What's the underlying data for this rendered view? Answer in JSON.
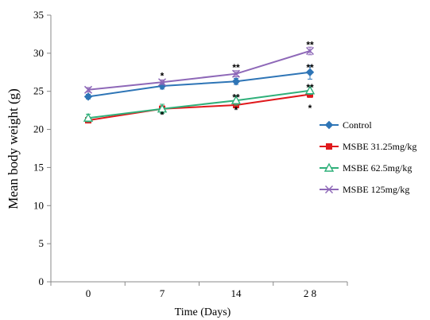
{
  "chart_data": {
    "type": "line",
    "xlabel": "Time (Days)",
    "ylabel": "Mean body weight (g)",
    "categories": [
      "0",
      "7",
      "14",
      "2 8"
    ],
    "ylim": [
      0,
      35
    ],
    "yticks": [
      0,
      5,
      10,
      15,
      20,
      25,
      30,
      35
    ],
    "grid": false,
    "legend_position": "right",
    "series": [
      {
        "name": "Control",
        "values": [
          24.3,
          25.7,
          26.3,
          27.5
        ],
        "color": "#2e75b6",
        "marker": "diamond",
        "errors": [
          0.3,
          0.4,
          0.4,
          0.9
        ]
      },
      {
        "name": "MSBE 31.25mg/kg",
        "values": [
          21.2,
          22.7,
          23.2,
          24.6
        ],
        "color": "#e0191c",
        "marker": "square",
        "errors": [
          0.3,
          0.4,
          0.3,
          0.4
        ]
      },
      {
        "name": "MSBE 62.5mg/kg",
        "values": [
          21.5,
          22.7,
          23.8,
          25.1
        ],
        "color": "#2fb07a",
        "marker": "triangle",
        "errors": [
          0.5,
          0.6,
          0.6,
          0.5
        ]
      },
      {
        "name": "MSBE 125mg/kg",
        "values": [
          25.2,
          26.2,
          27.3,
          30.3
        ],
        "color": "#8e68b8",
        "marker": "x",
        "errors": [
          0.3,
          0.3,
          0.4,
          0.5
        ]
      }
    ],
    "annotations": [
      {
        "text": "*",
        "category_index": 1,
        "y": 27.1
      },
      {
        "text": "*",
        "category_index": 1,
        "y": 22.0
      },
      {
        "text": "**",
        "category_index": 2,
        "y": 28.2
      },
      {
        "text": "**",
        "category_index": 2,
        "y": 24.3
      },
      {
        "text": "*",
        "category_index": 2,
        "y": 22.6
      },
      {
        "text": "**",
        "category_index": 3,
        "y": 31.2
      },
      {
        "text": "**",
        "category_index": 3,
        "y": 28.2
      },
      {
        "text": "**",
        "category_index": 3,
        "y": 25.6
      },
      {
        "text": "*",
        "category_index": 3,
        "y": 22.9
      }
    ]
  }
}
